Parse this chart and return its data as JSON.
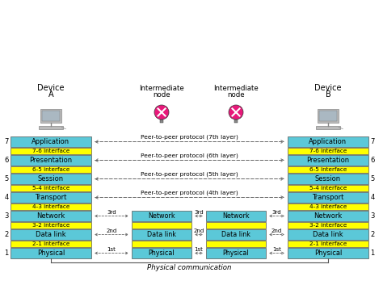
{
  "bg_color": "#ffffff",
  "cyan_color": "#5bc8d8",
  "yellow_color": "#ffff00",
  "layer_labels": [
    "Application",
    "Presentation",
    "Session",
    "Transport",
    "Network",
    "Data link",
    "Physical"
  ],
  "interface_labels": [
    "7-6 interface",
    "6-5 interface",
    "5-4 interface",
    "4-3 interface",
    "3-2 interface",
    "2-1 interface"
  ],
  "peer_protocols": [
    "Peer-to-peer protocol (7th layer)",
    "Peer-to-peer protocol (6th layer)",
    "Peer-to-peer protocol (5th layer)",
    "Peer-to-peer protocol (4th layer)"
  ],
  "intermediate_layers": [
    "Network",
    "Data link",
    "Physical"
  ],
  "physical_comm_label": "Physical communication",
  "device_a_label": "Device\nA",
  "device_b_label": "Device\nB",
  "node_label": "Intermediate\nnode",
  "arrow_labels_3layers": [
    "3rd",
    "2nd",
    "1st"
  ]
}
